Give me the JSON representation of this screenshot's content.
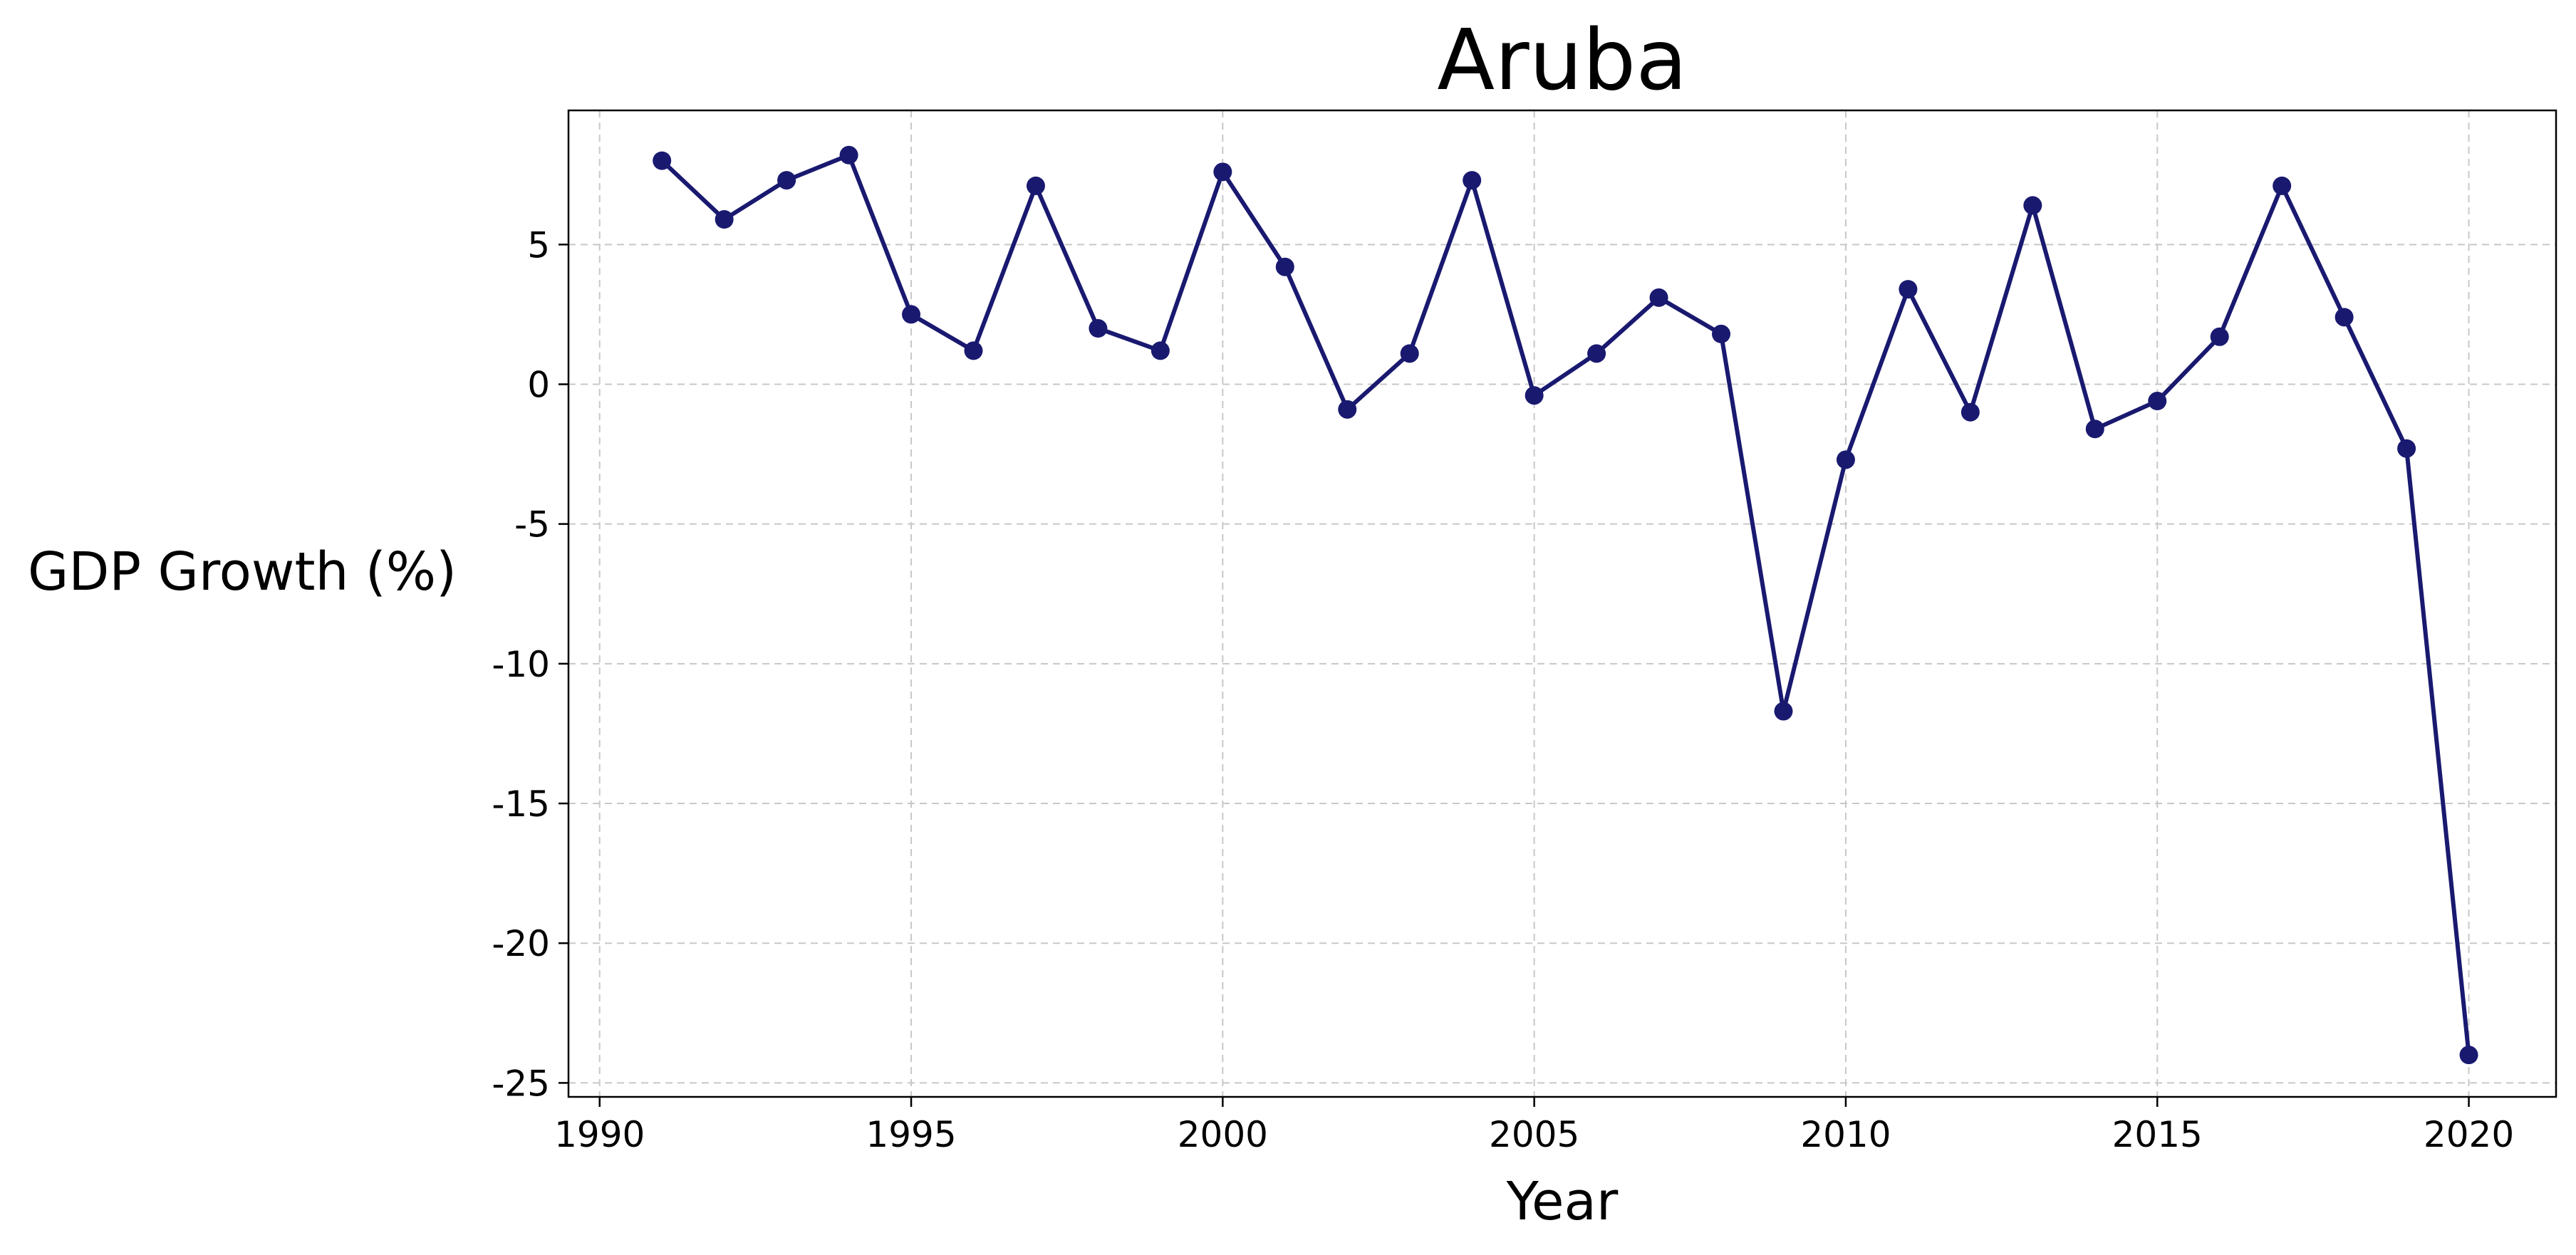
{
  "chart_data": {
    "type": "line",
    "title": "Aruba",
    "xlabel": "Year",
    "ylabel": "GDP Growth (%)",
    "xlim": [
      1989.5,
      2021.4
    ],
    "ylim": [
      -25.5,
      9.8
    ],
    "xticks": [
      1990,
      1995,
      2000,
      2005,
      2010,
      2015,
      2020
    ],
    "yticks": [
      5,
      0,
      -5,
      -10,
      -15,
      -20,
      -25
    ],
    "ytick_labels": [
      "5",
      "0",
      "-5",
      "-10",
      "-15",
      "-20",
      "-25"
    ],
    "grid": true,
    "legend": null,
    "series": [
      {
        "color": "#191970",
        "marker": "circle",
        "x": [
          1991,
          1992,
          1993,
          1994,
          1995,
          1996,
          1997,
          1998,
          1999,
          2000,
          2001,
          2002,
          2003,
          2004,
          2005,
          2006,
          2007,
          2008,
          2009,
          2010,
          2011,
          2012,
          2013,
          2014,
          2015,
          2016,
          2017,
          2018,
          2019,
          2020
        ],
        "y": [
          8.0,
          5.9,
          7.3,
          8.2,
          2.5,
          1.2,
          7.1,
          2.0,
          1.2,
          7.6,
          4.2,
          -0.9,
          1.1,
          7.3,
          -0.4,
          1.1,
          3.1,
          1.8,
          -11.7,
          -2.7,
          3.4,
          -1.0,
          6.4,
          -1.6,
          -0.6,
          1.7,
          7.1,
          2.4,
          -2.3,
          -24.0
        ]
      }
    ]
  }
}
